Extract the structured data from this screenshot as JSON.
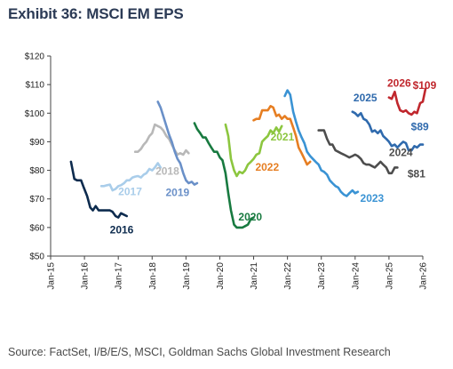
{
  "title": "Exhibit 36: MSCI EM EPS",
  "source": "Source: FactSet, I/B/E/S, MSCI, Goldman Sachs Global Investment Research",
  "chart_data": {
    "type": "line",
    "title": "Exhibit 36: MSCI EM EPS",
    "xlabel": "",
    "ylabel": "",
    "ylim": [
      50,
      120
    ],
    "yticks": [
      50,
      60,
      70,
      80,
      90,
      100,
      110,
      120
    ],
    "ytick_labels": [
      "$50",
      "$60",
      "$70",
      "$80",
      "$90",
      "$100",
      "$110",
      "$120"
    ],
    "xlim": [
      2015,
      2026
    ],
    "xticks": [
      2015,
      2016,
      2017,
      2018,
      2019,
      2020,
      2021,
      2022,
      2023,
      2024,
      2025,
      2026
    ],
    "xtick_labels": [
      "Jan-15",
      "Jan-16",
      "Jan-17",
      "Jan-18",
      "Jan-19",
      "Jan-20",
      "Jan-21",
      "Jan-22",
      "Jan-23",
      "Jan-24",
      "Jan-25",
      "Jan-26"
    ],
    "grid": false,
    "legend": "none",
    "annotations": [
      {
        "text": "$109",
        "x": 2025.7,
        "y": 108.5,
        "color": "#c0272d"
      },
      {
        "text": "$89",
        "x": 2025.65,
        "y": 94.0,
        "color": "#2f6aad"
      },
      {
        "text": "$81",
        "x": 2025.55,
        "y": 77.5,
        "color": "#4d4d4d"
      }
    ],
    "series": [
      {
        "name": "2016",
        "color": "#0d2b4e",
        "label_x": 2016.75,
        "label_y": 58.0,
        "x": [
          2015.6,
          2015.7,
          2015.78,
          2015.9,
          2015.98,
          2016.08,
          2016.17,
          2016.25,
          2016.33,
          2016.42,
          2016.5,
          2016.58,
          2016.67,
          2016.75,
          2016.83,
          2016.92,
          2017.0,
          2017.08,
          2017.25
        ],
        "y": [
          83,
          77,
          76.5,
          76.5,
          74,
          71,
          67,
          66,
          67.5,
          66,
          66,
          66,
          66,
          66,
          65.5,
          64,
          63.5,
          65,
          64
        ]
      },
      {
        "name": "2017",
        "color": "#a9cdea",
        "label_x": 2017.0,
        "label_y": 71.3,
        "x": [
          2016.5,
          2016.58,
          2016.67,
          2016.75,
          2016.83,
          2016.92,
          2017.0,
          2017.08,
          2017.17,
          2017.25,
          2017.33,
          2017.42,
          2017.5,
          2017.58,
          2017.67,
          2017.75,
          2017.83,
          2017.92,
          2018.0,
          2018.08,
          2018.17,
          2018.25
        ],
        "y": [
          74.5,
          74.5,
          74.8,
          75,
          73,
          73.5,
          74.5,
          74.8,
          75.5,
          76.5,
          76.5,
          77.5,
          77.8,
          78,
          77.5,
          78.5,
          79,
          80.5,
          80,
          81,
          82.5,
          81
        ]
      },
      {
        "name": "2018",
        "color": "#b8b8b8",
        "label_x": 2018.1,
        "label_y": 78.5,
        "x": [
          2017.5,
          2017.58,
          2017.67,
          2017.75,
          2017.83,
          2017.92,
          2018.0,
          2018.08,
          2018.17,
          2018.25,
          2018.33,
          2018.42,
          2018.5,
          2018.58,
          2018.67,
          2018.75,
          2018.83,
          2018.92,
          2019.0,
          2019.08
        ],
        "y": [
          86.5,
          86.5,
          87.5,
          89,
          90,
          92,
          93,
          96,
          95.5,
          95,
          94,
          92,
          91,
          89,
          87,
          85.5,
          86,
          85.5,
          87,
          86
        ]
      },
      {
        "name": "2019",
        "color": "#6a90c8",
        "label_x": 2018.4,
        "label_y": 71.0,
        "x": [
          2018.17,
          2018.25,
          2018.33,
          2018.42,
          2018.5,
          2018.58,
          2018.67,
          2018.75,
          2018.83,
          2018.92,
          2019.0,
          2019.08,
          2019.17,
          2019.25,
          2019.33
        ],
        "y": [
          104,
          102,
          99,
          95.5,
          92.5,
          90,
          86.5,
          84,
          82.5,
          79,
          76.5,
          75.5,
          76,
          75,
          75.5
        ]
      },
      {
        "name": "2020",
        "color": "#187a40",
        "label_x": 2020.55,
        "label_y": 62.5,
        "x": [
          2019.25,
          2019.33,
          2019.42,
          2019.5,
          2019.58,
          2019.67,
          2019.75,
          2019.83,
          2019.92,
          2020.0,
          2020.08,
          2020.17,
          2020.25,
          2020.33,
          2020.42,
          2020.5,
          2020.58,
          2020.67,
          2020.75,
          2020.83,
          2020.92,
          2021.0
        ],
        "y": [
          96.5,
          94.5,
          93,
          91.5,
          91.5,
          89.5,
          88,
          86.5,
          86.5,
          84.5,
          83.5,
          79,
          72,
          66,
          61,
          60,
          60,
          60,
          60.5,
          61,
          63,
          63.5
        ]
      },
      {
        "name": "2021",
        "color": "#8cc63f",
        "label_x": 2021.5,
        "label_y": 90.5,
        "x": [
          2020.17,
          2020.25,
          2020.33,
          2020.42,
          2020.5,
          2020.58,
          2020.67,
          2020.75,
          2020.83,
          2020.92,
          2021.0,
          2021.08,
          2021.17,
          2021.25,
          2021.33,
          2021.42,
          2021.5,
          2021.58,
          2021.67,
          2021.75,
          2021.83
        ],
        "y": [
          96,
          92,
          84,
          80,
          78,
          79.5,
          79,
          80,
          82,
          83,
          84,
          85.5,
          86,
          90,
          91,
          92,
          94,
          93,
          95,
          93.5,
          95.5
        ]
      },
      {
        "name": "2022",
        "color": "#e67e22",
        "label_x": 2021.05,
        "label_y": 79.8,
        "x": [
          2021.0,
          2021.08,
          2021.17,
          2021.25,
          2021.33,
          2021.42,
          2021.5,
          2021.58,
          2021.67,
          2021.75,
          2021.83,
          2021.92,
          2022.0,
          2022.08,
          2022.17,
          2022.25,
          2022.33,
          2022.42,
          2022.5,
          2022.58,
          2022.67
        ],
        "y": [
          97.5,
          98,
          98,
          101,
          101,
          101,
          102.5,
          102,
          99,
          99.5,
          98,
          99,
          98,
          98,
          95,
          92,
          88,
          86,
          84,
          82,
          83
        ]
      },
      {
        "name": "2023",
        "color": "#3a93d4",
        "label_x": 2024.15,
        "label_y": 69.0,
        "x": [
          2021.92,
          2022.0,
          2022.08,
          2022.17,
          2022.25,
          2022.33,
          2022.42,
          2022.5,
          2022.58,
          2022.67,
          2022.75,
          2022.83,
          2022.92,
          2023.0,
          2023.08,
          2023.17,
          2023.25,
          2023.33,
          2023.42,
          2023.5,
          2023.58,
          2023.67,
          2023.75,
          2023.83,
          2023.92,
          2024.0,
          2024.08
        ],
        "y": [
          106,
          108,
          106.5,
          100.5,
          97,
          94,
          91.5,
          89.5,
          86.5,
          85,
          84,
          83,
          82,
          80,
          79.5,
          78.5,
          76.5,
          75.5,
          74.5,
          74,
          72.5,
          71.5,
          71,
          72,
          73,
          72,
          72.5
        ]
      },
      {
        "name": "2024",
        "color": "#4d4d4d",
        "label_x": 2025.0,
        "label_y": 85.0,
        "x": [
          2022.92,
          2023.0,
          2023.08,
          2023.17,
          2023.25,
          2023.33,
          2023.42,
          2023.5,
          2023.58,
          2023.67,
          2023.75,
          2023.83,
          2023.92,
          2024.0,
          2024.08,
          2024.17,
          2024.25,
          2024.33,
          2024.42,
          2024.5,
          2024.58,
          2024.67,
          2024.75,
          2024.83,
          2024.92,
          2025.0,
          2025.08,
          2025.17,
          2025.25
        ],
        "y": [
          94,
          94,
          94,
          91,
          89,
          89,
          87,
          86.5,
          86,
          85.5,
          85,
          84.5,
          85,
          85.5,
          85,
          84,
          82.5,
          82,
          82,
          81.5,
          81,
          82,
          83,
          82,
          81,
          79,
          79,
          81,
          81
        ]
      },
      {
        "name": "2025",
        "color": "#2f6aad",
        "label_x": 2023.95,
        "label_y": 104.2,
        "x": [
          2023.92,
          2024.0,
          2024.08,
          2024.17,
          2024.25,
          2024.33,
          2024.42,
          2024.5,
          2024.58,
          2024.67,
          2024.75,
          2024.83,
          2024.92,
          2025.0,
          2025.08,
          2025.17,
          2025.25,
          2025.33,
          2025.42,
          2025.5,
          2025.58,
          2025.67,
          2025.75,
          2025.83,
          2025.92,
          2026.0
        ],
        "y": [
          100.5,
          100,
          99,
          100,
          98,
          97.5,
          96,
          93.5,
          94,
          93,
          94,
          92,
          91,
          90,
          88.5,
          89,
          88,
          89,
          90,
          89.5,
          87,
          87,
          88.5,
          88,
          89,
          89
        ]
      },
      {
        "name": "2026",
        "color": "#c0272d",
        "label_x": 2024.95,
        "label_y": 109.2,
        "x": [
          2025.0,
          2025.08,
          2025.17,
          2025.25,
          2025.33,
          2025.42,
          2025.5,
          2025.58,
          2025.67,
          2025.75,
          2025.83,
          2025.92,
          2026.0,
          2026.08
        ],
        "y": [
          105.5,
          105,
          107.5,
          103.5,
          101,
          100.5,
          101,
          100,
          99.5,
          100.5,
          100,
          103.5,
          104,
          108.5
        ]
      }
    ]
  }
}
